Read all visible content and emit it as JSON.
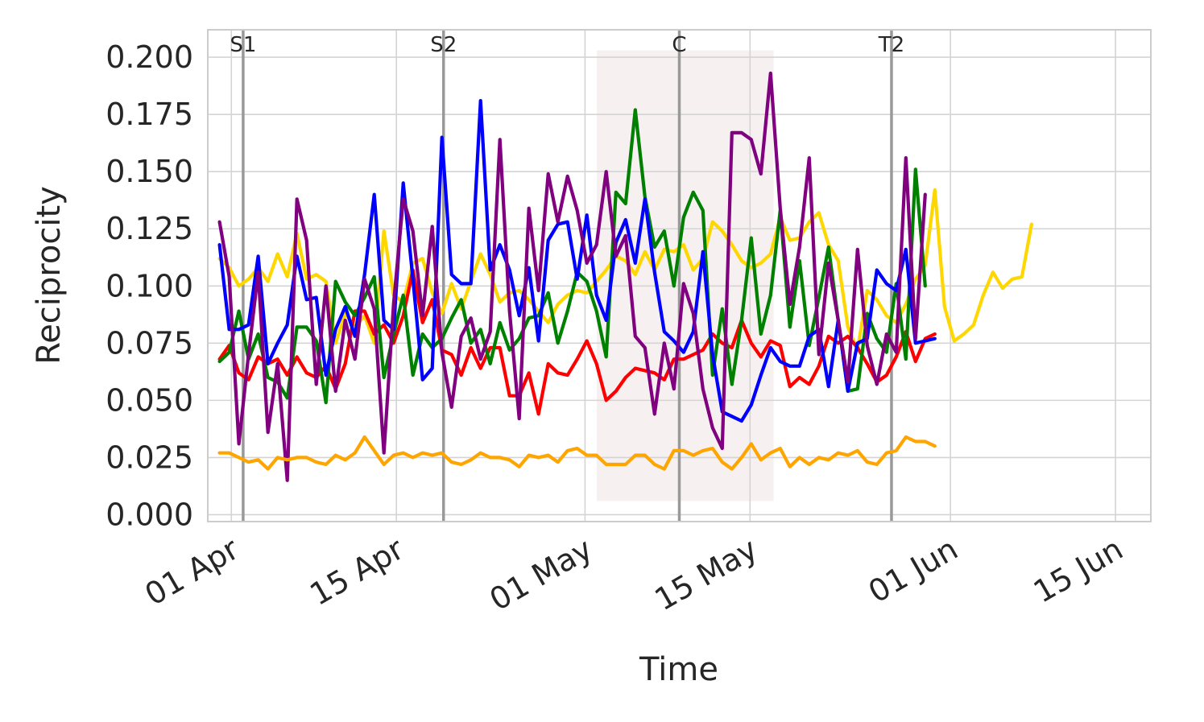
{
  "chart_data": {
    "type": "line",
    "xlabel": "Time",
    "ylabel": "Reciprocity",
    "ylim": [
      -0.003,
      0.212
    ],
    "y_ticks": [
      "0.000",
      "0.025",
      "0.050",
      "0.075",
      "0.100",
      "0.125",
      "0.150",
      "0.175",
      "0.200"
    ],
    "y_tick_values": [
      0,
      0.025,
      0.05,
      0.075,
      0.1,
      0.125,
      0.15,
      0.175,
      0.2
    ],
    "x_ticks": [
      {
        "label": "01 Apr",
        "date": "2020-04-01"
      },
      {
        "label": "15 Apr",
        "date": "2020-04-15"
      },
      {
        "label": "01 May",
        "date": "2020-05-01"
      },
      {
        "label": "15 May",
        "date": "2020-05-15"
      },
      {
        "label": "01 Jun",
        "date": "2020-06-01"
      },
      {
        "label": "15 Jun",
        "date": "2020-06-15"
      }
    ],
    "x_range": [
      "2020-03-30",
      "2020-06-18"
    ],
    "x_start": "2020-03-31",
    "x_step_days": 0.82,
    "grid": true,
    "events": [
      {
        "label": "S1",
        "date": "2020-04-02"
      },
      {
        "label": "S2",
        "date": "2020-04-19"
      },
      {
        "label": "C",
        "date": "2020-05-09"
      },
      {
        "label": "T2",
        "date": "2020-05-27"
      }
    ],
    "shaded_region": {
      "start": "2020-05-02",
      "end": "2020-05-17",
      "y_range": [
        0.006,
        0.203
      ],
      "color": "#f5eeee"
    },
    "series": [
      {
        "color": "#ffd700",
        "values": [
          0.112,
          0.108,
          0.1,
          0.103,
          0.108,
          0.102,
          0.114,
          0.104,
          0.123,
          0.103,
          0.105,
          0.102,
          0.075,
          0.088,
          0.082,
          0.087,
          0.075,
          0.124,
          0.096,
          0.093,
          0.11,
          0.112,
          0.097,
          0.088,
          0.101,
          0.09,
          0.102,
          0.114,
          0.105,
          0.093,
          0.097,
          0.098,
          0.094,
          0.089,
          0.084,
          0.092,
          0.096,
          0.098,
          0.097,
          0.102,
          0.107,
          0.113,
          0.111,
          0.105,
          0.115,
          0.107,
          0.116,
          0.115,
          0.118,
          0.107,
          0.112,
          0.128,
          0.124,
          0.118,
          0.111,
          0.108,
          0.11,
          0.114,
          0.13,
          0.12,
          0.121,
          0.128,
          0.132,
          0.118,
          0.111,
          0.082,
          0.072,
          0.098,
          0.094,
          0.087,
          0.084,
          0.092,
          0.103,
          0.109,
          0.142,
          0.091,
          0.076,
          0.079,
          0.083,
          0.096,
          0.106,
          0.099,
          0.103,
          0.104,
          0.127
        ]
      },
      {
        "color": "#ff0000",
        "values": [
          0.068,
          0.074,
          0.062,
          0.059,
          0.069,
          0.066,
          0.068,
          0.061,
          0.069,
          0.062,
          0.06,
          0.065,
          0.055,
          0.066,
          0.089,
          0.089,
          0.079,
          0.083,
          0.075,
          0.087,
          0.107,
          0.084,
          0.094,
          0.072,
          0.07,
          0.061,
          0.073,
          0.064,
          0.073,
          0.073,
          0.052,
          0.052,
          0.062,
          0.044,
          0.066,
          0.062,
          0.061,
          0.068,
          0.076,
          0.066,
          0.05,
          0.054,
          0.06,
          0.064,
          0.063,
          0.062,
          0.059,
          0.068,
          0.068,
          0.07,
          0.072,
          0.079,
          0.075,
          0.073,
          0.085,
          0.075,
          0.069,
          0.076,
          0.074,
          0.056,
          0.06,
          0.057,
          0.065,
          0.078,
          0.075,
          0.078,
          0.073,
          0.066,
          0.058,
          0.061,
          0.069,
          0.08,
          0.067,
          0.077,
          0.079
        ]
      },
      {
        "color": "#008000",
        "values": [
          0.067,
          0.071,
          0.089,
          0.068,
          0.079,
          0.06,
          0.058,
          0.051,
          0.082,
          0.082,
          0.076,
          0.049,
          0.102,
          0.093,
          0.087,
          0.095,
          0.104,
          0.06,
          0.079,
          0.096,
          0.061,
          0.079,
          0.073,
          0.077,
          0.086,
          0.094,
          0.075,
          0.081,
          0.066,
          0.084,
          0.072,
          0.077,
          0.086,
          0.087,
          0.097,
          0.075,
          0.089,
          0.106,
          0.102,
          0.089,
          0.069,
          0.141,
          0.136,
          0.177,
          0.139,
          0.117,
          0.124,
          0.1,
          0.13,
          0.141,
          0.133,
          0.061,
          0.09,
          0.057,
          0.085,
          0.121,
          0.079,
          0.096,
          0.133,
          0.082,
          0.111,
          0.074,
          0.095,
          0.117,
          0.085,
          0.054,
          0.055,
          0.088,
          0.077,
          0.071,
          0.101,
          0.068,
          0.151,
          0.1
        ]
      },
      {
        "color": "#0000ff",
        "values": [
          0.118,
          0.081,
          0.081,
          0.083,
          0.113,
          0.066,
          0.075,
          0.083,
          0.113,
          0.094,
          0.095,
          0.061,
          0.081,
          0.091,
          0.078,
          0.105,
          0.14,
          0.085,
          0.081,
          0.145,
          0.103,
          0.059,
          0.064,
          0.165,
          0.105,
          0.101,
          0.101,
          0.181,
          0.107,
          0.118,
          0.107,
          0.087,
          0.108,
          0.076,
          0.12,
          0.127,
          0.128,
          0.103,
          0.131,
          0.096,
          0.085,
          0.119,
          0.129,
          0.11,
          0.138,
          0.106,
          0.08,
          0.076,
          0.071,
          0.08,
          0.115,
          0.07,
          0.045,
          0.043,
          0.041,
          0.048,
          0.061,
          0.073,
          0.067,
          0.065,
          0.065,
          0.078,
          0.081,
          0.056,
          0.085,
          0.054,
          0.075,
          0.077,
          0.107,
          0.101,
          0.098,
          0.116,
          0.075,
          0.076,
          0.077
        ]
      },
      {
        "color": "#800080",
        "values": [
          0.128,
          0.104,
          0.031,
          0.07,
          0.106,
          0.036,
          0.066,
          0.015,
          0.138,
          0.12,
          0.057,
          0.1,
          0.054,
          0.085,
          0.068,
          0.103,
          0.09,
          0.027,
          0.092,
          0.138,
          0.124,
          0.087,
          0.126,
          0.071,
          0.047,
          0.078,
          0.086,
          0.068,
          0.08,
          0.164,
          0.089,
          0.042,
          0.134,
          0.098,
          0.149,
          0.128,
          0.148,
          0.133,
          0.11,
          0.118,
          0.15,
          0.113,
          0.122,
          0.078,
          0.073,
          0.044,
          0.075,
          0.055,
          0.101,
          0.088,
          0.055,
          0.038,
          0.029,
          0.167,
          0.167,
          0.164,
          0.149,
          0.193,
          0.134,
          0.092,
          0.117,
          0.156,
          0.07,
          0.11,
          0.085,
          0.058,
          0.116,
          0.074,
          0.057,
          0.079,
          0.071,
          0.156,
          0.077,
          0.14
        ]
      },
      {
        "color": "#ffa500",
        "values": [
          0.027,
          0.027,
          0.025,
          0.023,
          0.024,
          0.02,
          0.025,
          0.024,
          0.025,
          0.025,
          0.023,
          0.022,
          0.026,
          0.024,
          0.027,
          0.034,
          0.028,
          0.022,
          0.026,
          0.027,
          0.025,
          0.027,
          0.026,
          0.027,
          0.023,
          0.022,
          0.024,
          0.027,
          0.025,
          0.025,
          0.024,
          0.021,
          0.026,
          0.025,
          0.026,
          0.023,
          0.028,
          0.029,
          0.026,
          0.026,
          0.022,
          0.022,
          0.022,
          0.026,
          0.026,
          0.022,
          0.02,
          0.028,
          0.028,
          0.026,
          0.028,
          0.029,
          0.023,
          0.02,
          0.025,
          0.031,
          0.024,
          0.027,
          0.029,
          0.021,
          0.025,
          0.022,
          0.025,
          0.024,
          0.027,
          0.026,
          0.028,
          0.023,
          0.022,
          0.027,
          0.028,
          0.034,
          0.032,
          0.032,
          0.03
        ]
      }
    ]
  }
}
